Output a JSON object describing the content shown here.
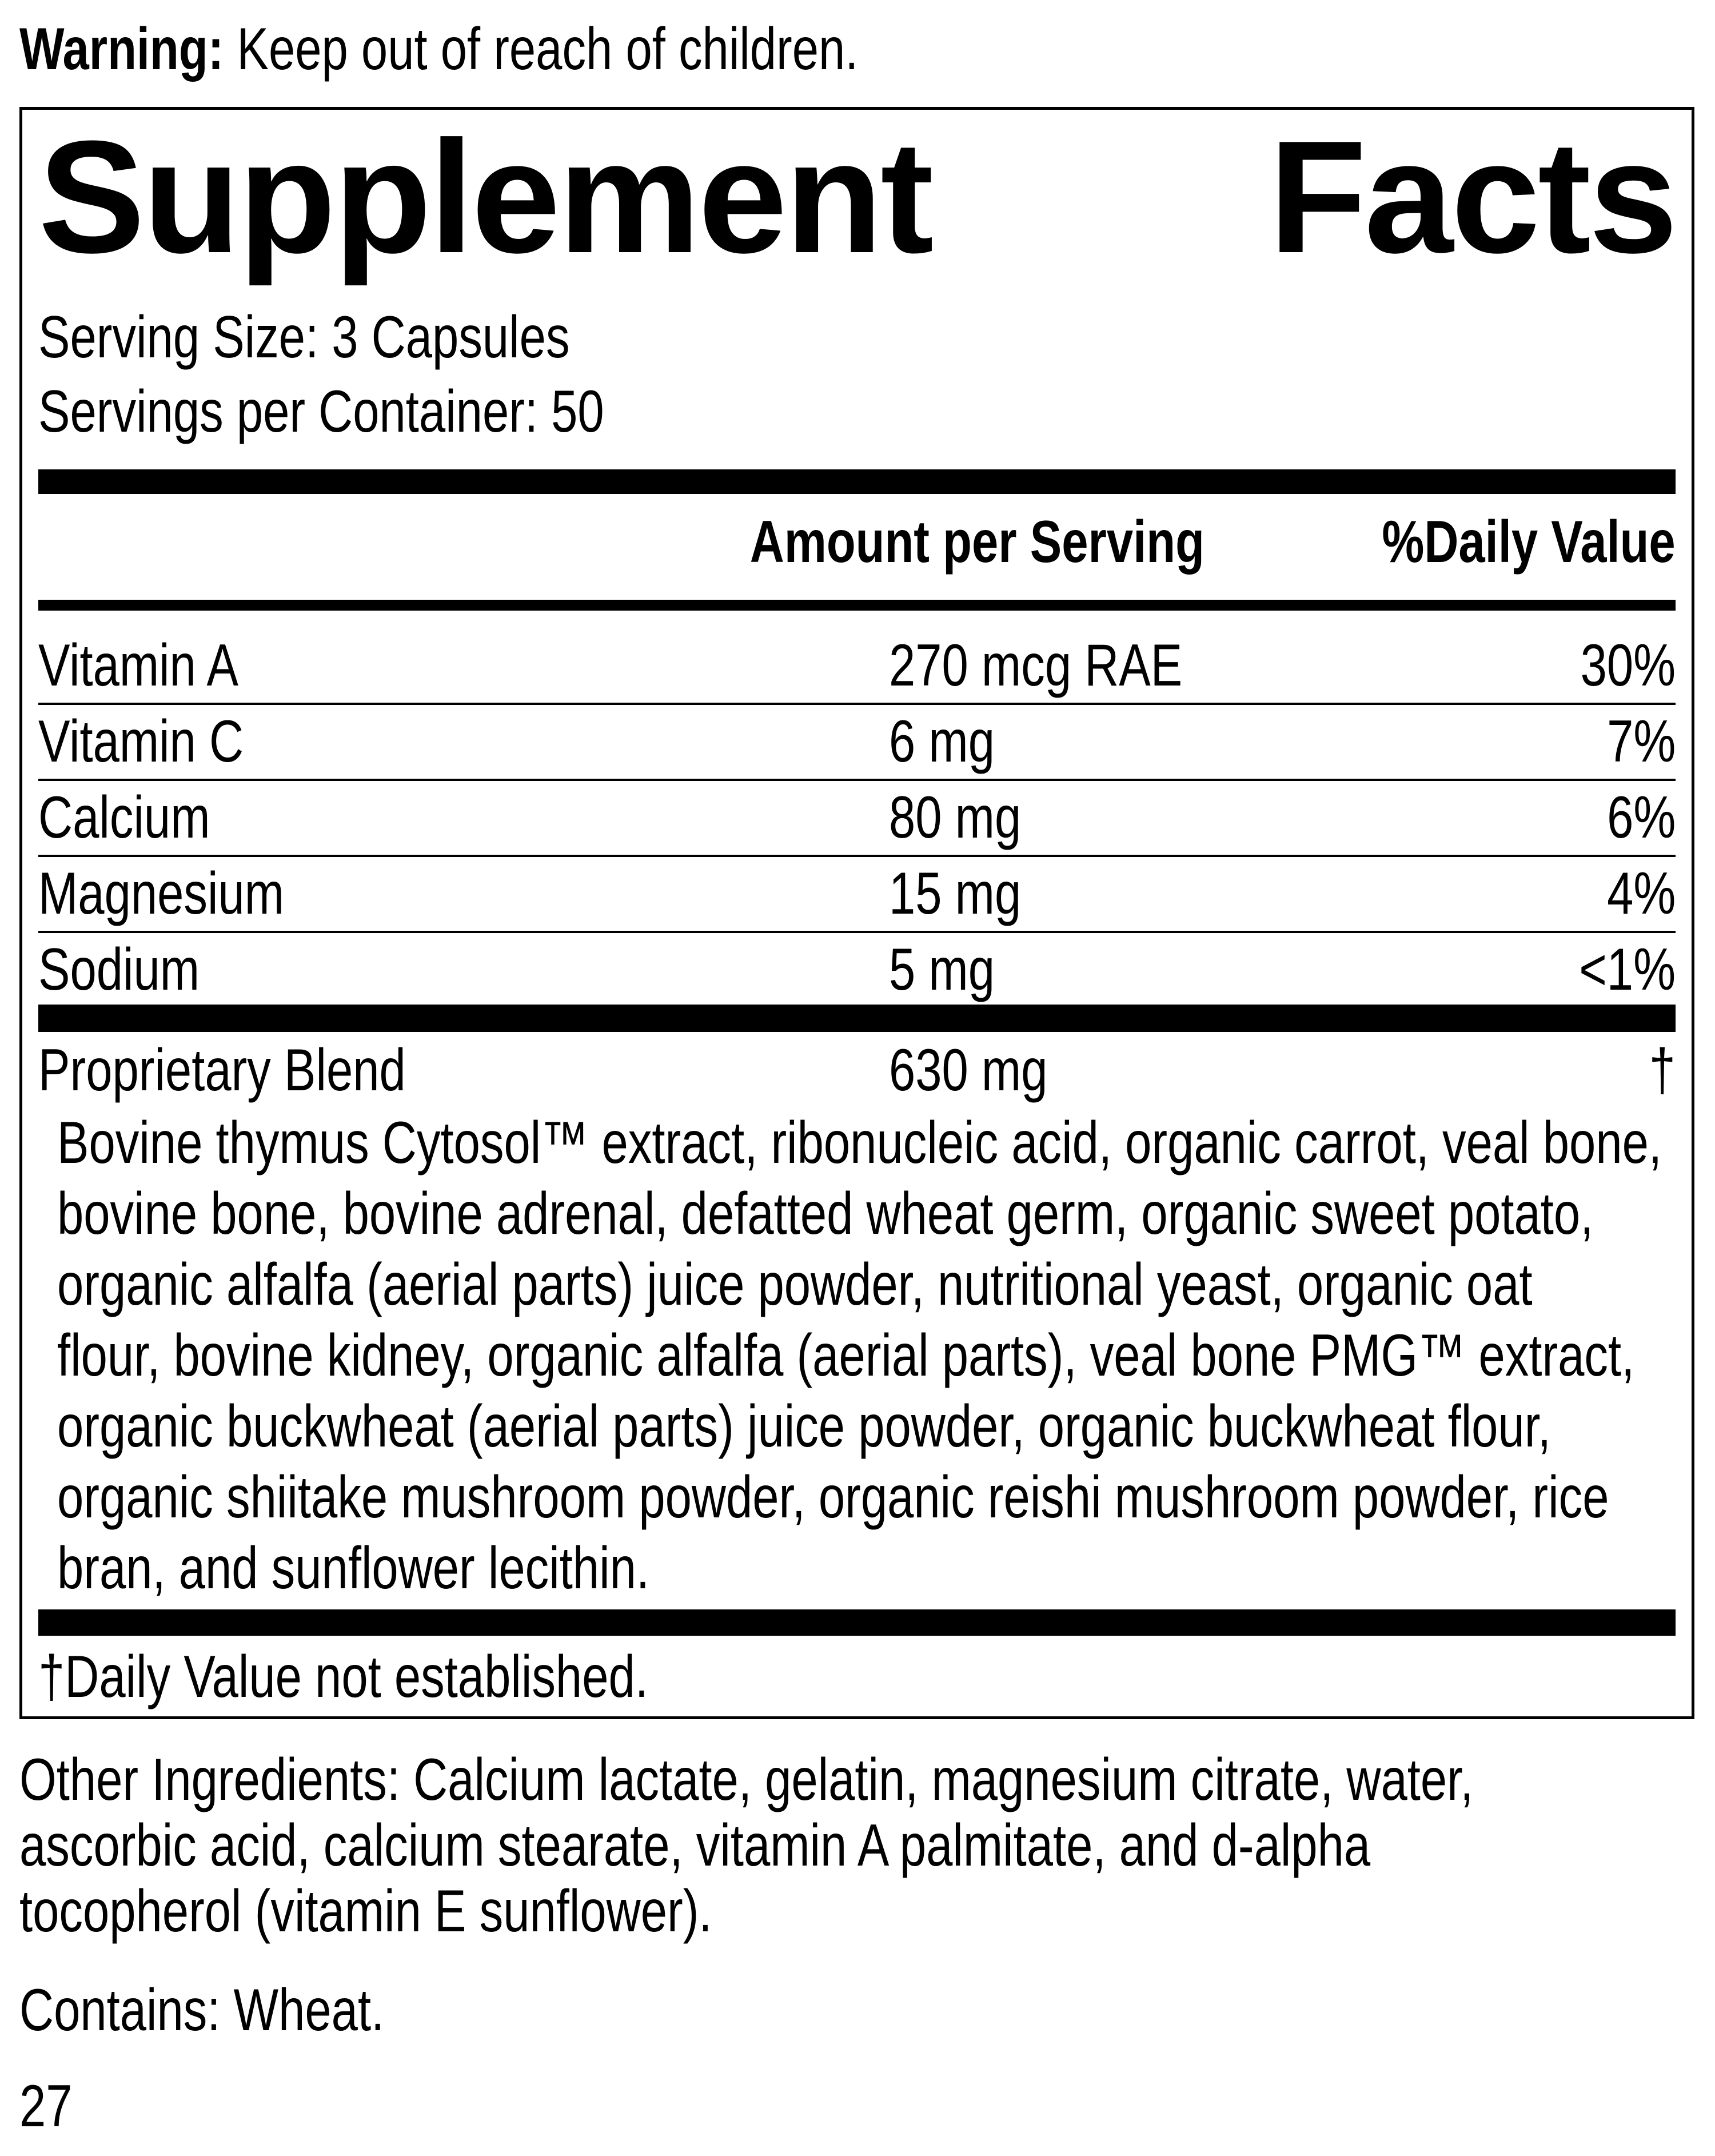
{
  "warning": {
    "label": "Warning:",
    "text": " Keep out of reach of children."
  },
  "title": {
    "word1": "Supplement",
    "word2": "Facts"
  },
  "serving_size": "Serving Size: 3 Capsules",
  "servings_per_container": "Servings per Container: 50",
  "header": {
    "amount": "Amount per Serving",
    "dv": "%Daily Value"
  },
  "rows": [
    {
      "name": "Vitamin A",
      "amount": "270 mcg RAE",
      "dv": "30%"
    },
    {
      "name": "Vitamin C",
      "amount": "6 mg",
      "dv": "7%"
    },
    {
      "name": "Calcium",
      "amount": "80 mg",
      "dv": "6%"
    },
    {
      "name": "Magnesium",
      "amount": "15 mg",
      "dv": "4%"
    },
    {
      "name": "Sodium",
      "amount": "5 mg",
      "dv": "<1%"
    }
  ],
  "blend": {
    "name": "Proprietary Blend",
    "amount": "630 mg",
    "dv": "†",
    "lines": [
      "Bovine thymus Cytosol™ extract, ribonucleic acid, organic carrot, veal bone,",
      "bovine bone, bovine adrenal, defatted wheat germ, organic sweet potato,",
      "organic alfalfa (aerial parts) juice powder, nutritional yeast, organic oat",
      "flour, bovine kidney, organic alfalfa (aerial parts), veal bone PMG™ extract,",
      "organic buckwheat (aerial parts) juice powder, organic buckwheat flour,",
      "organic shiitake mushroom powder, organic reishi mushroom powder, rice",
      "bran, and sunflower lecithin."
    ]
  },
  "footnote": "†Daily Value not established.",
  "other_ingredients": [
    "Other Ingredients: Calcium lactate, gelatin, magnesium citrate, water,",
    "ascorbic acid, calcium stearate, vitamin A palmitate, and d-alpha",
    "tocopherol (vitamin E sunflower)."
  ],
  "contains": "Contains: Wheat.",
  "code": "27"
}
